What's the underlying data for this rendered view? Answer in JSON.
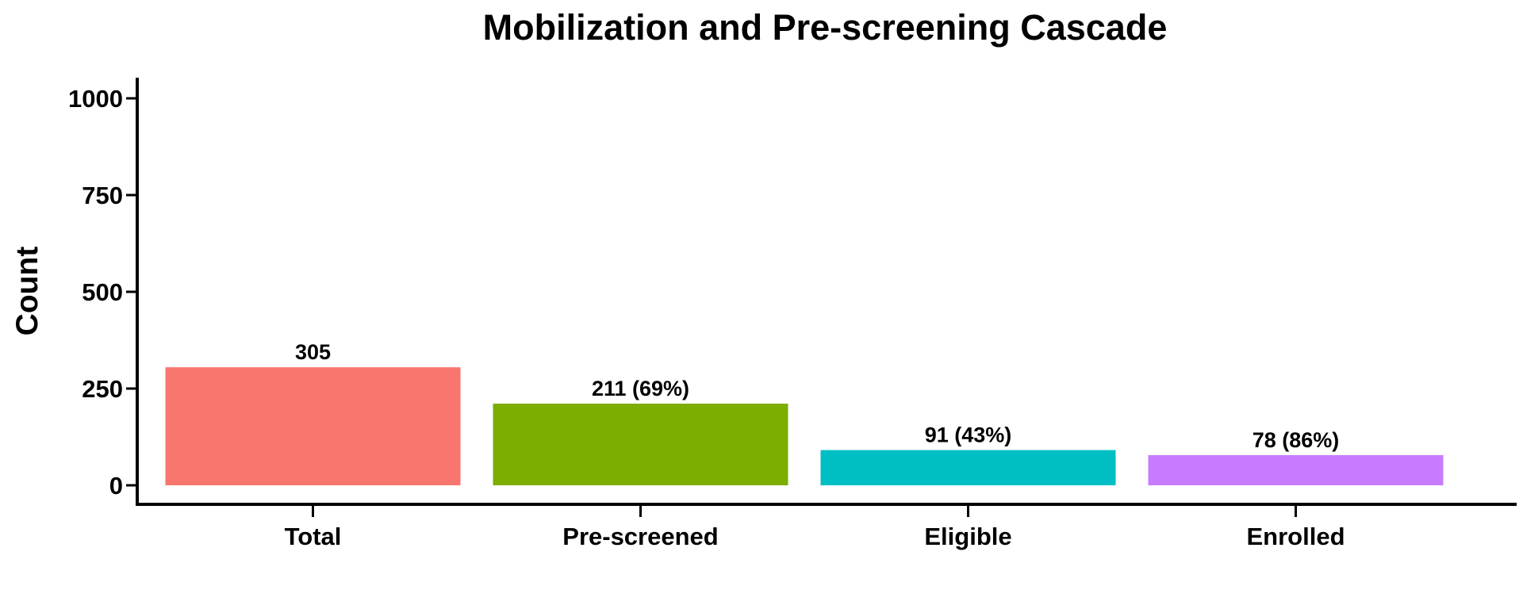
{
  "chart_data": {
    "type": "bar",
    "title": "Mobilization and Pre-screening Cascade",
    "xlabel": "",
    "ylabel": "Count",
    "categories": [
      "Total",
      "Pre-screened",
      "Eligible",
      "Enrolled"
    ],
    "values": [
      305,
      211,
      91,
      78
    ],
    "data_labels": [
      "305",
      "211 (69%)",
      "91 (43%)",
      "78 (86%)"
    ],
    "colors": [
      "#F8766D",
      "#7CAE00",
      "#00BFC4",
      "#C77CFF"
    ],
    "ylim": [
      0,
      1050
    ],
    "yticks": [
      0,
      250,
      500,
      750,
      1000
    ],
    "grid": false,
    "legend": "none"
  }
}
